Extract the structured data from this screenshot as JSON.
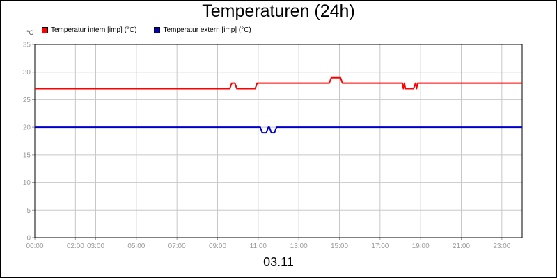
{
  "chart_data": {
    "type": "line",
    "title": "Temperaturen (24h)",
    "y_unit": "°C",
    "footer": "03.11",
    "ylim": [
      0,
      35
    ],
    "y_ticks": [
      0,
      5,
      10,
      15,
      20,
      25,
      30,
      35
    ],
    "xlim": [
      0,
      24
    ],
    "x_ticks": [
      {
        "h": 0,
        "label": "00:00"
      },
      {
        "h": 2,
        "label": "02:00"
      },
      {
        "h": 3,
        "label": "03:00"
      },
      {
        "h": 5,
        "label": "05:00"
      },
      {
        "h": 7,
        "label": "07:00"
      },
      {
        "h": 9,
        "label": "09:00"
      },
      {
        "h": 11,
        "label": "11:00"
      },
      {
        "h": 13,
        "label": "13:00"
      },
      {
        "h": 15,
        "label": "15:00"
      },
      {
        "h": 17,
        "label": "17:00"
      },
      {
        "h": 19,
        "label": "19:00"
      },
      {
        "h": 21,
        "label": "21:00"
      },
      {
        "h": 23,
        "label": "23:00"
      }
    ],
    "grid": true,
    "legend_position": "top-left",
    "series": [
      {
        "name": "Temperatur intern [imp] (°C)",
        "color": "#ff0000",
        "points": [
          [
            0,
            27
          ],
          [
            9.6,
            27
          ],
          [
            9.7,
            28
          ],
          [
            9.85,
            28
          ],
          [
            9.95,
            27
          ],
          [
            10.85,
            27
          ],
          [
            10.95,
            28
          ],
          [
            14.5,
            28
          ],
          [
            14.6,
            29
          ],
          [
            15.05,
            29
          ],
          [
            15.15,
            28
          ],
          [
            18.1,
            28
          ],
          [
            18.15,
            27
          ],
          [
            18.2,
            28
          ],
          [
            18.25,
            27
          ],
          [
            18.65,
            27
          ],
          [
            18.75,
            28
          ],
          [
            18.8,
            27
          ],
          [
            18.85,
            28
          ],
          [
            24,
            28
          ]
        ]
      },
      {
        "name": "Temperatur extern [imp] (°C)",
        "color": "#0000cc",
        "points": [
          [
            0,
            20
          ],
          [
            11.1,
            20
          ],
          [
            11.2,
            19
          ],
          [
            11.4,
            19
          ],
          [
            11.5,
            20
          ],
          [
            11.55,
            20
          ],
          [
            11.65,
            19
          ],
          [
            11.8,
            19
          ],
          [
            11.9,
            20
          ],
          [
            24,
            20
          ]
        ]
      }
    ]
  }
}
